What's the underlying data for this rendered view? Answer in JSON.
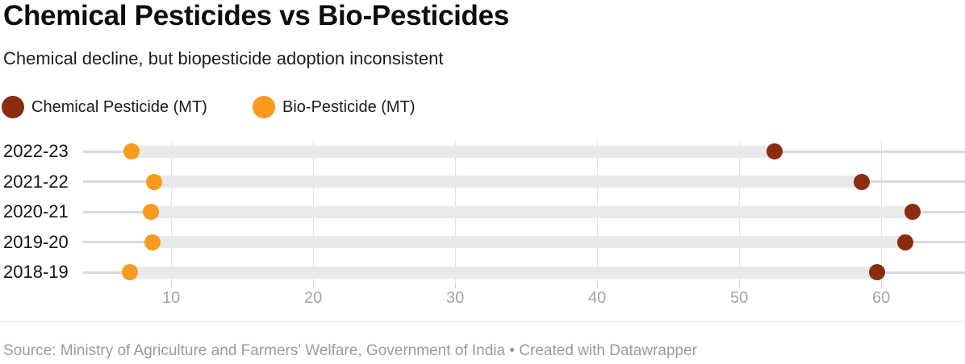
{
  "chart_data": {
    "type": "dumbbell",
    "title": "Chemical Pesticides vs Bio-Pesticides",
    "subtitle": "Chemical decline, but biopesticide adoption inconsistent",
    "categories": [
      "2022-23",
      "2021-22",
      "2020-21",
      "2019-20",
      "2018-19"
    ],
    "series": [
      {
        "name": "Chemical Pesticide (MT)",
        "color": "#8b2c0f",
        "values": [
          52.5,
          58.6,
          62.2,
          61.7,
          59.7
        ]
      },
      {
        "name": "Bio-Pesticide (MT)",
        "color": "#f79a1e",
        "values": [
          7.2,
          8.8,
          8.6,
          8.7,
          7.1
        ]
      }
    ],
    "xlabel": "",
    "ylabel": "",
    "x_ticks": [
      10,
      20,
      30,
      40,
      50,
      60
    ],
    "x_domain": [
      3.8,
      65.9
    ],
    "grid": "vertical",
    "legend_position": "top",
    "band_color": "#e9e9e9",
    "row_line_color": "#d9d9d9"
  },
  "footer": {
    "source": "Source: Ministry of Agriculture and Farmers' Welfare, Government of India • Created with Datawrapper"
  }
}
